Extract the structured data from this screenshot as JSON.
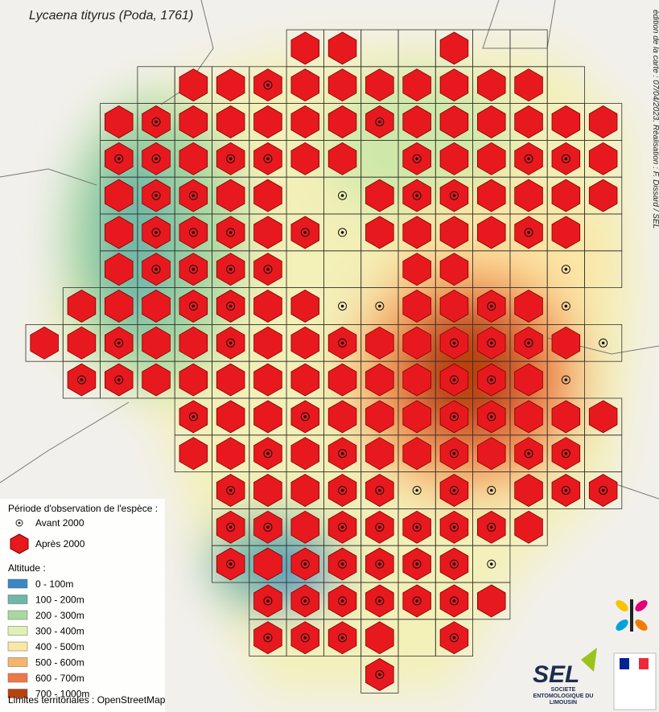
{
  "title": "Lycaena tityrus (Poda, 1761)",
  "credit": "édition de la carte : 07/04/2023. Réalisation : F. Dissard / SEL",
  "legend": {
    "period_title": "Période d'observation de l'espèce :",
    "periods": [
      "Avant 2000",
      "Après 2000"
    ],
    "altitude_title": "Altitude :",
    "altitudes": [
      {
        "label": "0 - 100m",
        "color": "#3a87c6"
      },
      {
        "label": "100 - 200m",
        "color": "#6fb7a8"
      },
      {
        "label": "200 - 300m",
        "color": "#a8d8a0"
      },
      {
        "label": "300 - 400m",
        "color": "#e2f0b4"
      },
      {
        "label": "400 - 500m",
        "color": "#fbe6a6"
      },
      {
        "label": "500 - 600m",
        "color": "#f8b46c"
      },
      {
        "label": "600 - 700m",
        "color": "#ec7a46"
      },
      {
        "label": "700 - 1000m",
        "color": "#b8420f"
      }
    ],
    "source": "Limites territoriales : OpenStreetMap"
  },
  "logo": {
    "name": "SEL",
    "subtitle": "SOCIÉTÉ ENTOMOLOGIQUE DU LIMOUSIN"
  }
}
